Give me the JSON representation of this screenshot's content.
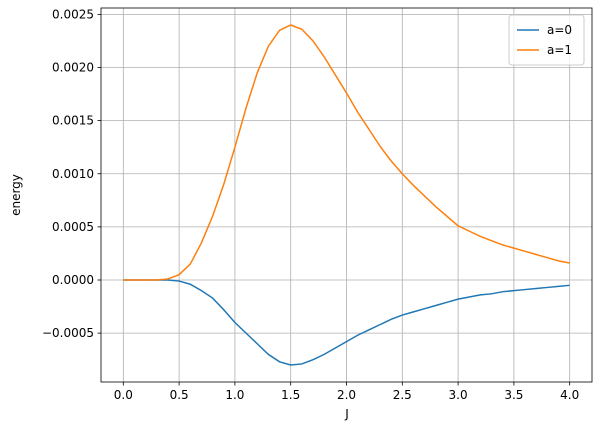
{
  "chart_data": {
    "type": "line",
    "xlabel": "J",
    "ylabel": "energy",
    "x": [
      0,
      0.1,
      0.2,
      0.3,
      0.4,
      0.5,
      0.6,
      0.7,
      0.8,
      0.9,
      1,
      1.1,
      1.2,
      1.3,
      1.4,
      1.5,
      1.6,
      1.7,
      1.8,
      1.9,
      2,
      2.1,
      2.2,
      2.3,
      2.4,
      2.5,
      2.6,
      2.7,
      2.8,
      2.9,
      3,
      3.1,
      3.2,
      3.3,
      3.4,
      3.5,
      3.6,
      3.7,
      3.8,
      3.9,
      4
    ],
    "series": [
      {
        "name": "a=0",
        "color": "#1f77b4",
        "values": [
          0,
          0,
          0,
          0,
          0,
          -1e-05,
          -4e-05,
          -0.0001,
          -0.00017,
          -0.00028,
          -0.0004,
          -0.0005,
          -0.0006,
          -0.0007,
          -0.00077,
          -0.0008,
          -0.00079,
          -0.00075,
          -0.0007,
          -0.00064,
          -0.00058,
          -0.00052,
          -0.00047,
          -0.00042,
          -0.00037,
          -0.00033,
          -0.0003,
          -0.00027,
          -0.00024,
          -0.00021,
          -0.00018,
          -0.00016,
          -0.00014,
          -0.00013,
          -0.00011,
          -0.0001,
          -9e-05,
          -8e-05,
          -7e-05,
          -6e-05,
          -5e-05
        ]
      },
      {
        "name": "a=1",
        "color": "#ff7f0e",
        "values": [
          0,
          0,
          0,
          0,
          1e-05,
          5e-05,
          0.00015,
          0.00035,
          0.0006,
          0.0009,
          0.00125,
          0.00162,
          0.00195,
          0.0022,
          0.00235,
          0.0024,
          0.00236,
          0.00225,
          0.0021,
          0.00193,
          0.00176,
          0.00158,
          0.00142,
          0.00126,
          0.00112,
          0.001,
          0.00089,
          0.00079,
          0.00069,
          0.0006,
          0.00051,
          0.00046,
          0.00041,
          0.00037,
          0.00033,
          0.0003,
          0.00027,
          0.00024,
          0.00021,
          0.00018,
          0.00016
        ]
      }
    ],
    "xlim": [
      -0.2,
      4.2
    ],
    "ylim": [
      -0.00096,
      0.00256
    ],
    "xticks": [
      {
        "value": 0,
        "label": "0.0"
      },
      0.5,
      {
        "value": 1,
        "label": "1.0"
      },
      1.5,
      {
        "value": 2,
        "label": "2.0"
      },
      2.5,
      {
        "value": 3,
        "label": "3.0"
      },
      3.5,
      {
        "value": 4,
        "label": "4.0"
      }
    ],
    "yticks": [
      {
        "value": -0.0005,
        "label": "−0.0005"
      },
      {
        "value": 0,
        "label": "0.0000"
      },
      0.0005,
      {
        "value": 0.001,
        "label": "0.0010"
      },
      0.0015,
      {
        "value": 0.002,
        "label": "0.0020"
      },
      0.0025
    ],
    "grid": true,
    "legend": "upper right"
  }
}
